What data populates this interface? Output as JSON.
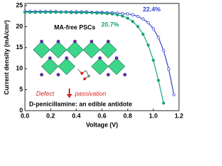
{
  "chart_data": {
    "type": "line",
    "xlabel": "Voltage (V)",
    "ylabel": "Current density (mA/cm²)",
    "xlim": [
      0,
      1.2
    ],
    "ylim": [
      0,
      25.5
    ],
    "xticks": [
      {
        "value": 0,
        "label": "0.0"
      },
      {
        "value": 0.2,
        "label": "0.2"
      },
      {
        "value": 0.4,
        "label": "0.4"
      },
      {
        "value": 0.6,
        "label": "0.6"
      },
      {
        "value": 0.8,
        "label": "0.8"
      },
      {
        "value": 1.0,
        "label": "1.0"
      },
      {
        "value": 1.2,
        "label": "1.2"
      }
    ],
    "yticks": [
      0,
      5,
      10,
      15,
      20,
      25
    ],
    "series": [
      {
        "name": "22.4%",
        "color": "#2f3fd0",
        "x": [
          0,
          0.04,
          0.08,
          0.12,
          0.16,
          0.2,
          0.24,
          0.28,
          0.32,
          0.36,
          0.4,
          0.44,
          0.48,
          0.52,
          0.56,
          0.6,
          0.64,
          0.68,
          0.72,
          0.76,
          0.8,
          0.84,
          0.88,
          0.92,
          0.96,
          1.0,
          1.04,
          1.08,
          1.12,
          1.16
        ],
        "values": [
          23.6,
          23.6,
          23.6,
          23.6,
          23.6,
          23.6,
          23.6,
          23.5,
          23.5,
          23.5,
          23.5,
          23.5,
          23.5,
          23.4,
          23.4,
          23.4,
          23.3,
          23.3,
          23.2,
          23.1,
          23.0,
          22.8,
          22.4,
          21.8,
          20.9,
          19.5,
          17.4,
          14.3,
          9.9,
          3.8
        ]
      },
      {
        "name": "20.7%",
        "color": "#17a37a",
        "x": [
          0,
          0.04,
          0.08,
          0.12,
          0.16,
          0.2,
          0.24,
          0.28,
          0.32,
          0.36,
          0.4,
          0.44,
          0.48,
          0.52,
          0.56,
          0.6,
          0.64,
          0.68,
          0.72,
          0.76,
          0.8,
          0.84,
          0.88,
          0.92,
          0.96,
          1.0,
          1.04,
          1.08
        ],
        "values": [
          23.4,
          23.4,
          23.4,
          23.4,
          23.4,
          23.4,
          23.4,
          23.4,
          23.4,
          23.3,
          23.3,
          23.3,
          23.3,
          23.3,
          23.2,
          23.2,
          23.1,
          23.0,
          22.8,
          22.5,
          22.0,
          21.2,
          20.0,
          18.2,
          15.6,
          12.0,
          7.2,
          1.8
        ]
      }
    ],
    "annotations": {
      "inset_title": "MA-free PSCs",
      "defect": "Defect",
      "passivation": "passivation",
      "caption": "D-penicillamine: an edible antidote"
    }
  }
}
